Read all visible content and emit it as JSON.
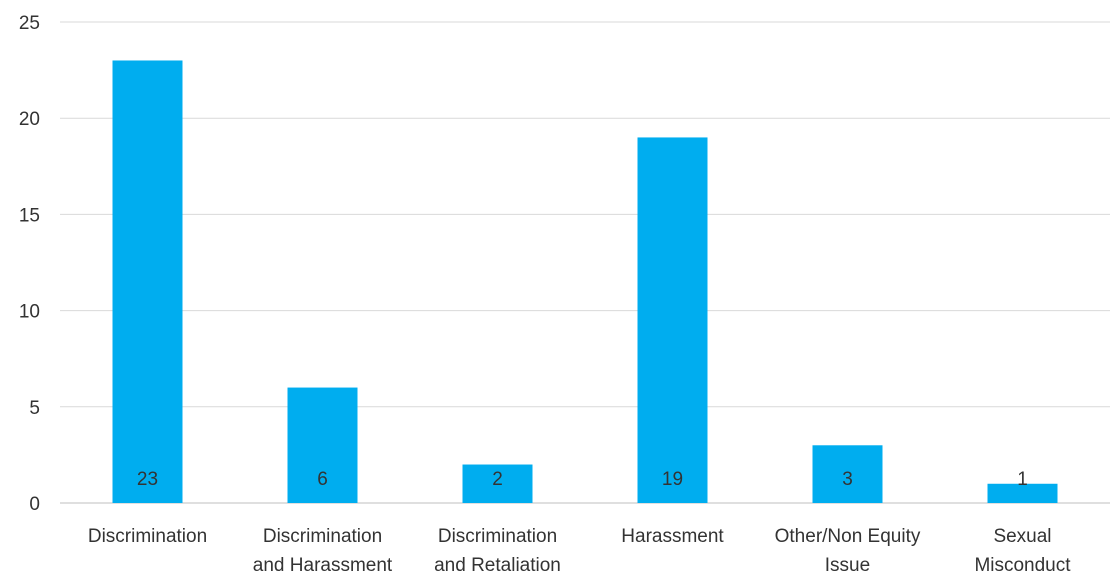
{
  "chart_data": {
    "type": "bar",
    "title": "",
    "xlabel": "",
    "ylabel": "",
    "categories": [
      [
        "Discrimination"
      ],
      [
        "Discrimination",
        "and Harassment"
      ],
      [
        "Discrimination",
        "and Retaliation"
      ],
      [
        "Harassment"
      ],
      [
        "Other/Non Equity",
        "Issue"
      ],
      [
        "Sexual",
        "Misconduct"
      ]
    ],
    "values": [
      23,
      6,
      2,
      19,
      3,
      1
    ],
    "ylim": [
      0,
      25
    ],
    "yticks": [
      0,
      5,
      10,
      15,
      20,
      25
    ],
    "grid": true,
    "legend": "none",
    "data_labels_position": "inside-base",
    "colors": {
      "bar": "#00adef",
      "grid": "#d9d9d9",
      "text": "#333333"
    }
  }
}
